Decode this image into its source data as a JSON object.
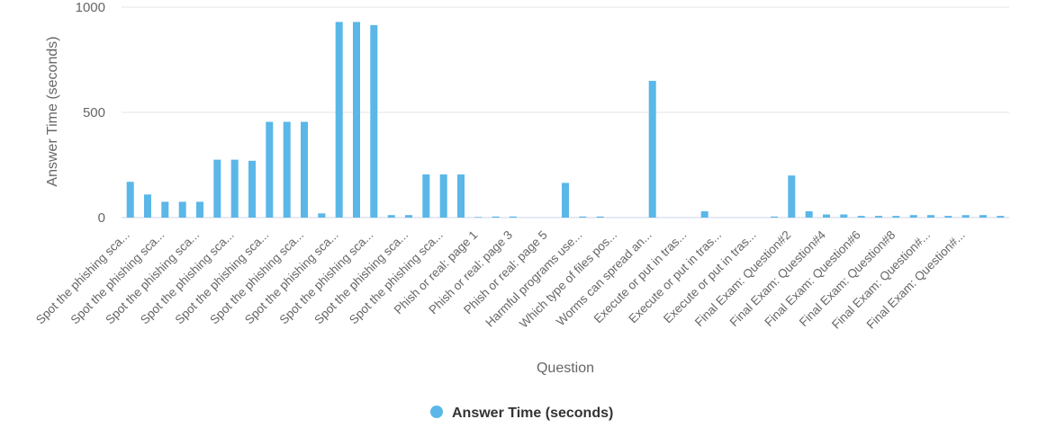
{
  "chart_data": {
    "type": "bar",
    "ylabel": "Answer Time (seconds)",
    "xlabel": "Question",
    "ylim": [
      0,
      1000
    ],
    "yticks": [
      "0",
      "500",
      "1000"
    ],
    "grid": true,
    "legend_position": "bottom-center",
    "color": "#5ab7e8",
    "visible_tick_labels": [
      "Spot the phishing sca...",
      "Spot the phishing sca...",
      "Spot the phishing sca...",
      "Spot the phishing sca...",
      "Spot the phishing sca...",
      "Spot the phishing sca...",
      "Spot the phishing sca...",
      "Spot the phishing sca...",
      "Spot the phishing sca...",
      "Spot the phishing sca...",
      "Phish or real: page 1",
      "Phish or real: page 3",
      "Phish or real: page 5",
      "Harmful programs use...",
      "Which type of files pos...",
      "Worms can spread an...",
      "Execute or put in tras...",
      "Execute or put in tras...",
      "Execute or put in tras...",
      "Final Exam: Question#2",
      "Final Exam: Question#4",
      "Final Exam: Question#6",
      "Final Exam: Question#8",
      "Final Exam: Question#...",
      "Final Exam: Question#..."
    ],
    "series": [
      {
        "name": "Answer Time (seconds)",
        "values": [
          170,
          110,
          75,
          75,
          75,
          275,
          275,
          270,
          455,
          455,
          455,
          20,
          930,
          930,
          915,
          12,
          12,
          205,
          205,
          205,
          3,
          5,
          5,
          0,
          0,
          165,
          5,
          5,
          0,
          0,
          650,
          0,
          0,
          30,
          0,
          0,
          0,
          5,
          200,
          30,
          15,
          15,
          8,
          8,
          8,
          12,
          12,
          8,
          12,
          12,
          8
        ]
      }
    ]
  }
}
